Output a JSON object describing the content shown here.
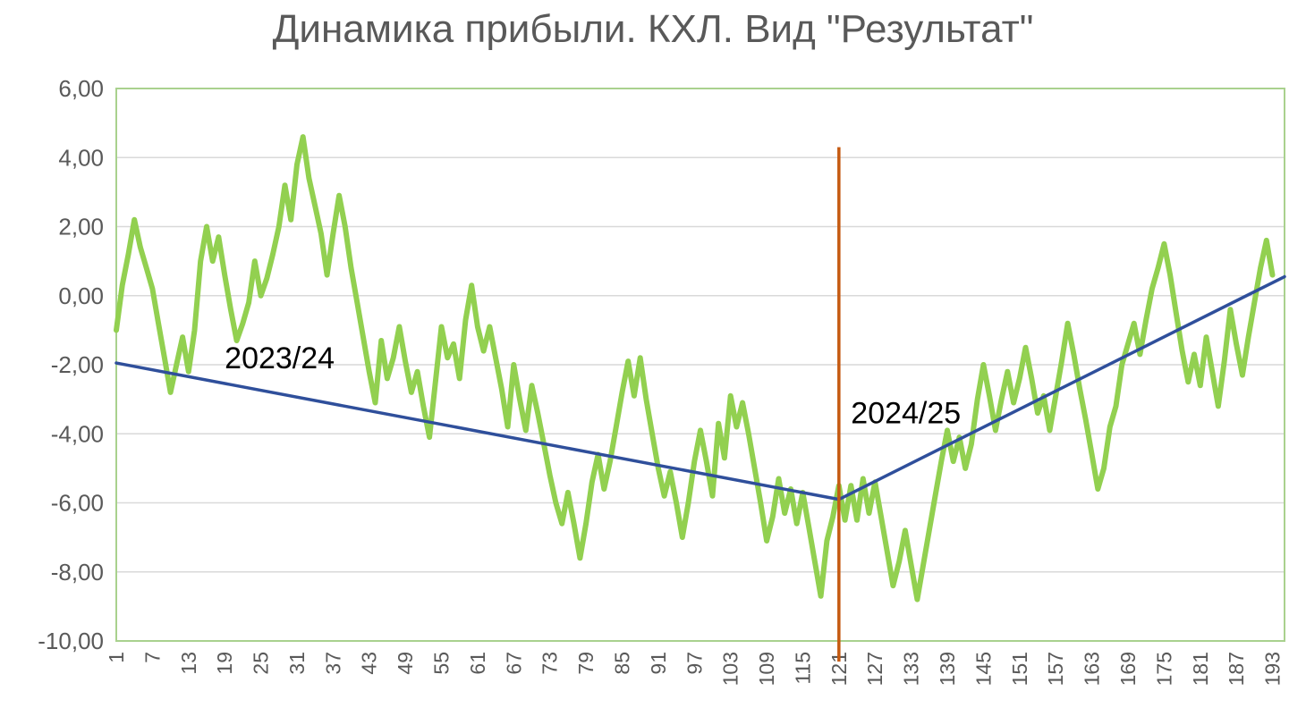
{
  "chart_data": {
    "type": "line",
    "title": "Динамика прибыли. КХЛ. Вид \"Результат\"",
    "xlabel": "",
    "ylabel": "",
    "ylim": [
      -10,
      6
    ],
    "xlim": [
      1,
      195
    ],
    "y_ticks": [
      6,
      4,
      2,
      0,
      -2,
      -4,
      -6,
      -8,
      -10
    ],
    "y_tick_labels": [
      "6,00",
      "4,00",
      "2,00",
      "0,00",
      "-2,00",
      "-4,00",
      "-6,00",
      "-8,00",
      "-10,00"
    ],
    "x_ticks": [
      1,
      7,
      13,
      19,
      25,
      31,
      37,
      43,
      49,
      55,
      61,
      67,
      73,
      79,
      85,
      91,
      97,
      103,
      109,
      115,
      121,
      127,
      133,
      139,
      145,
      151,
      157,
      163,
      169,
      175,
      181,
      187,
      193
    ],
    "x_tick_labels": [
      "1",
      "7",
      "13",
      "19",
      "25",
      "31",
      "37",
      "43",
      "49",
      "55",
      "61",
      "67",
      "73",
      "79",
      "85",
      "91",
      "97",
      "103",
      "109",
      "115",
      "121",
      "127",
      "133",
      "139",
      "145",
      "151",
      "157",
      "163",
      "169",
      "175",
      "181",
      "187",
      "193"
    ],
    "grid": true,
    "series": [
      {
        "color": "#92D050",
        "points": [
          [
            1,
            -1.0
          ],
          [
            2,
            0.3
          ],
          [
            3,
            1.2
          ],
          [
            4,
            2.2
          ],
          [
            5,
            1.4
          ],
          [
            6,
            0.8
          ],
          [
            7,
            0.2
          ],
          [
            8,
            -0.8
          ],
          [
            9,
            -1.8
          ],
          [
            10,
            -2.8
          ],
          [
            11,
            -2.0
          ],
          [
            12,
            -1.2
          ],
          [
            13,
            -2.2
          ],
          [
            14,
            -1.0
          ],
          [
            15,
            1.0
          ],
          [
            16,
            2.0
          ],
          [
            17,
            1.0
          ],
          [
            18,
            1.7
          ],
          [
            19,
            0.6
          ],
          [
            20,
            -0.4
          ],
          [
            21,
            -1.3
          ],
          [
            22,
            -0.8
          ],
          [
            23,
            -0.2
          ],
          [
            24,
            1.0
          ],
          [
            25,
            0.0
          ],
          [
            26,
            0.5
          ],
          [
            27,
            1.2
          ],
          [
            28,
            2.0
          ],
          [
            29,
            3.2
          ],
          [
            30,
            2.2
          ],
          [
            31,
            3.8
          ],
          [
            32,
            4.6
          ],
          [
            33,
            3.4
          ],
          [
            34,
            2.6
          ],
          [
            35,
            1.8
          ],
          [
            36,
            0.6
          ],
          [
            37,
            1.8
          ],
          [
            38,
            2.9
          ],
          [
            39,
            2.0
          ],
          [
            40,
            0.8
          ],
          [
            41,
            -0.2
          ],
          [
            42,
            -1.2
          ],
          [
            43,
            -2.2
          ],
          [
            44,
            -3.1
          ],
          [
            45,
            -1.3
          ],
          [
            46,
            -2.4
          ],
          [
            47,
            -1.8
          ],
          [
            48,
            -0.9
          ],
          [
            49,
            -1.9
          ],
          [
            50,
            -2.8
          ],
          [
            51,
            -2.2
          ],
          [
            52,
            -3.2
          ],
          [
            53,
            -4.1
          ],
          [
            54,
            -2.5
          ],
          [
            55,
            -0.9
          ],
          [
            56,
            -1.8
          ],
          [
            57,
            -1.4
          ],
          [
            58,
            -2.4
          ],
          [
            59,
            -0.7
          ],
          [
            60,
            0.3
          ],
          [
            61,
            -0.9
          ],
          [
            62,
            -1.6
          ],
          [
            63,
            -0.9
          ],
          [
            64,
            -1.8
          ],
          [
            65,
            -2.7
          ],
          [
            66,
            -3.8
          ],
          [
            67,
            -2.0
          ],
          [
            68,
            -3.0
          ],
          [
            69,
            -3.9
          ],
          [
            70,
            -2.6
          ],
          [
            71,
            -3.4
          ],
          [
            72,
            -4.3
          ],
          [
            73,
            -5.2
          ],
          [
            74,
            -6.0
          ],
          [
            75,
            -6.6
          ],
          [
            76,
            -5.7
          ],
          [
            77,
            -6.6
          ],
          [
            78,
            -7.6
          ],
          [
            79,
            -6.6
          ],
          [
            80,
            -5.4
          ],
          [
            81,
            -4.6
          ],
          [
            82,
            -5.6
          ],
          [
            83,
            -4.8
          ],
          [
            84,
            -3.8
          ],
          [
            85,
            -2.8
          ],
          [
            86,
            -1.9
          ],
          [
            87,
            -2.9
          ],
          [
            88,
            -1.8
          ],
          [
            89,
            -3.0
          ],
          [
            90,
            -4.0
          ],
          [
            91,
            -5.0
          ],
          [
            92,
            -5.8
          ],
          [
            93,
            -5.1
          ],
          [
            94,
            -6.0
          ],
          [
            95,
            -7.0
          ],
          [
            96,
            -6.0
          ],
          [
            97,
            -4.8
          ],
          [
            98,
            -3.9
          ],
          [
            99,
            -4.8
          ],
          [
            100,
            -5.8
          ],
          [
            101,
            -3.7
          ],
          [
            102,
            -4.7
          ],
          [
            103,
            -2.9
          ],
          [
            104,
            -3.8
          ],
          [
            105,
            -3.1
          ],
          [
            106,
            -4.0
          ],
          [
            107,
            -5.0
          ],
          [
            108,
            -6.0
          ],
          [
            109,
            -7.1
          ],
          [
            110,
            -6.4
          ],
          [
            111,
            -5.3
          ],
          [
            112,
            -6.3
          ],
          [
            113,
            -5.6
          ],
          [
            114,
            -6.6
          ],
          [
            115,
            -5.7
          ],
          [
            116,
            -6.7
          ],
          [
            117,
            -7.7
          ],
          [
            118,
            -8.7
          ],
          [
            119,
            -7.1
          ],
          [
            120,
            -6.4
          ],
          [
            121,
            -5.5
          ],
          [
            122,
            -6.5
          ],
          [
            123,
            -5.5
          ],
          [
            124,
            -6.5
          ],
          [
            125,
            -5.3
          ],
          [
            126,
            -6.3
          ],
          [
            127,
            -5.4
          ],
          [
            128,
            -6.4
          ],
          [
            129,
            -7.4
          ],
          [
            130,
            -8.4
          ],
          [
            131,
            -7.7
          ],
          [
            132,
            -6.8
          ],
          [
            133,
            -7.8
          ],
          [
            134,
            -8.8
          ],
          [
            135,
            -7.8
          ],
          [
            136,
            -6.8
          ],
          [
            137,
            -5.8
          ],
          [
            138,
            -4.8
          ],
          [
            139,
            -3.9
          ],
          [
            140,
            -4.8
          ],
          [
            141,
            -4.1
          ],
          [
            142,
            -5.0
          ],
          [
            143,
            -4.3
          ],
          [
            144,
            -3.0
          ],
          [
            145,
            -2.0
          ],
          [
            146,
            -2.9
          ],
          [
            147,
            -3.9
          ],
          [
            148,
            -3.0
          ],
          [
            149,
            -2.2
          ],
          [
            150,
            -3.1
          ],
          [
            151,
            -2.4
          ],
          [
            152,
            -1.5
          ],
          [
            153,
            -2.4
          ],
          [
            154,
            -3.4
          ],
          [
            155,
            -2.9
          ],
          [
            156,
            -3.9
          ],
          [
            157,
            -2.9
          ],
          [
            158,
            -1.9
          ],
          [
            159,
            -0.8
          ],
          [
            160,
            -1.7
          ],
          [
            161,
            -2.7
          ],
          [
            162,
            -3.6
          ],
          [
            163,
            -4.6
          ],
          [
            164,
            -5.6
          ],
          [
            165,
            -5.0
          ],
          [
            166,
            -3.8
          ],
          [
            167,
            -3.2
          ],
          [
            168,
            -2.0
          ],
          [
            169,
            -1.4
          ],
          [
            170,
            -0.8
          ],
          [
            171,
            -1.7
          ],
          [
            172,
            -0.7
          ],
          [
            173,
            0.2
          ],
          [
            174,
            0.8
          ],
          [
            175,
            1.5
          ],
          [
            176,
            0.6
          ],
          [
            177,
            -0.5
          ],
          [
            178,
            -1.6
          ],
          [
            179,
            -2.5
          ],
          [
            180,
            -1.7
          ],
          [
            181,
            -2.6
          ],
          [
            182,
            -1.2
          ],
          [
            183,
            -2.2
          ],
          [
            184,
            -3.2
          ],
          [
            185,
            -1.9
          ],
          [
            186,
            -0.4
          ],
          [
            187,
            -1.4
          ],
          [
            188,
            -2.3
          ],
          [
            189,
            -1.2
          ],
          [
            190,
            -0.2
          ],
          [
            191,
            0.8
          ],
          [
            192,
            1.6
          ],
          [
            193,
            0.6
          ]
        ]
      }
    ],
    "trend_lines": [
      {
        "label": "2023/24",
        "color": "#2F4F9B",
        "points": [
          [
            1,
            -1.95
          ],
          [
            121,
            -5.9
          ]
        ]
      },
      {
        "label": "2024/25",
        "color": "#2F4F9B",
        "points": [
          [
            121,
            -5.9
          ],
          [
            195,
            0.55
          ]
        ]
      }
    ],
    "divider": {
      "x": 121,
      "color": "#C55A11",
      "y_from": -10.6,
      "y_to": 4.3
    },
    "annotations": [
      {
        "text": "2023/24",
        "x": 19,
        "y": -2.1
      },
      {
        "text": "2024/25",
        "x": 123,
        "y": -3.7
      }
    ]
  }
}
